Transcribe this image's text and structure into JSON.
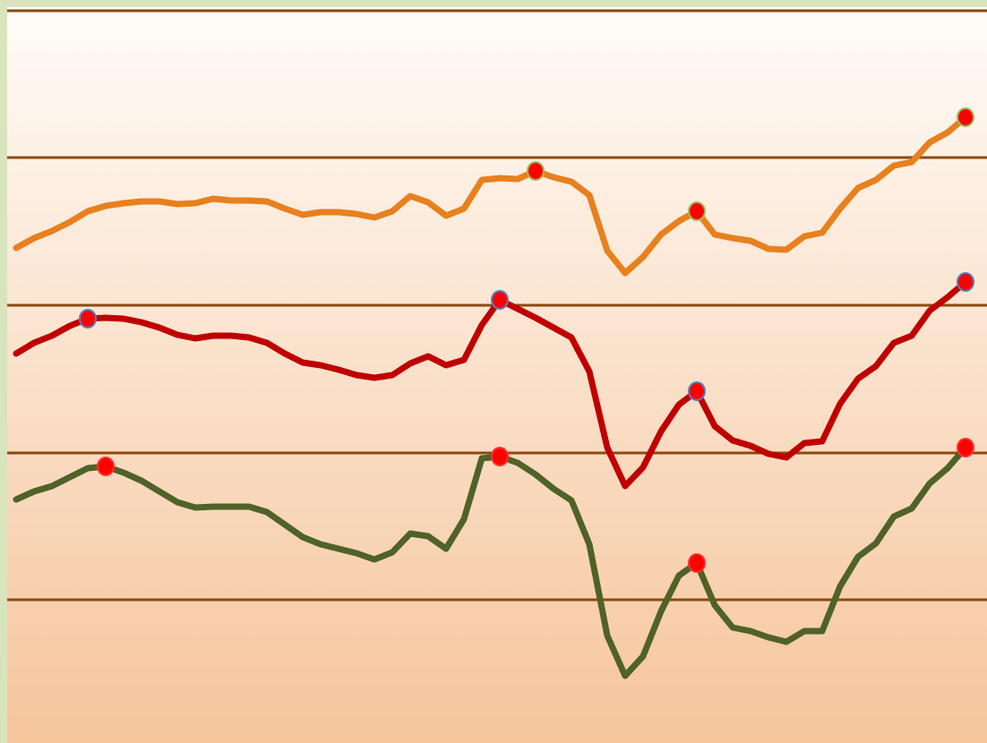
{
  "chart_data": {
    "type": "line",
    "x": [
      0,
      1,
      2,
      3,
      4,
      5,
      6,
      7,
      8,
      9,
      10,
      11,
      12,
      13,
      14,
      15,
      16,
      17,
      18,
      19,
      20,
      21,
      22,
      23,
      24,
      25,
      26,
      27,
      28,
      29,
      30,
      31,
      32,
      33,
      34,
      35,
      36,
      37,
      38,
      39,
      40,
      41,
      42,
      43,
      44,
      45,
      46,
      47,
      48,
      49,
      50,
      51,
      52,
      53
    ],
    "xlim": [
      -0.9,
      54.2
    ],
    "ylim": [
      0,
      830
    ],
    "yticks": [
      160,
      324,
      489,
      654,
      818
    ],
    "grid": true,
    "grid_color": "#8b4a12",
    "series": [
      {
        "color": "#e8801e",
        "marker_fill": "#ff0000",
        "marker_stroke": "#9bbb59",
        "markers": [
          29,
          38,
          53
        ],
        "values": [
          553,
          564,
          572,
          582,
          594,
          600,
          603,
          605,
          605,
          602,
          603,
          608,
          606,
          606,
          605,
          597,
          590,
          593,
          593,
          591,
          587,
          594,
          611,
          604,
          589,
          597,
          629,
          631,
          630,
          639,
          632,
          627,
          612,
          550,
          525,
          543,
          568,
          583,
          594,
          568,
          564,
          561,
          552,
          551,
          566,
          570,
          597,
          620,
          629,
          645,
          649,
          671,
          682,
          699
        ]
      },
      {
        "color": "#c00000",
        "marker_fill": "#ff0000",
        "marker_stroke": "#4f81bd",
        "markers": [
          4,
          27,
          38,
          53
        ],
        "values": [
          435,
          447,
          455,
          466,
          474,
          475,
          474,
          470,
          464,
          456,
          452,
          455,
          455,
          453,
          447,
          435,
          425,
          422,
          417,
          411,
          408,
          411,
          424,
          432,
          422,
          428,
          467,
          495,
          485,
          475,
          464,
          453,
          415,
          330,
          287,
          308,
          348,
          378,
          393,
          354,
          338,
          332,
          323,
          319,
          335,
          337,
          379,
          407,
          421,
          447,
          455,
          483,
          498,
          515
        ]
      },
      {
        "color": "#4f6228",
        "marker_fill": "#ff0000",
        "marker_stroke": "#ff3030",
        "markers": [
          5,
          27,
          38,
          53
        ],
        "values": [
          272,
          281,
          287,
          297,
          307,
          309,
          302,
          293,
          281,
          269,
          263,
          264,
          264,
          264,
          258,
          244,
          230,
          222,
          217,
          212,
          205,
          213,
          234,
          231,
          217,
          250,
          318,
          320,
          313,
          300,
          284,
          271,
          222,
          120,
          75,
          97,
          147,
          187,
          201,
          154,
          129,
          125,
          118,
          113,
          125,
          125,
          175,
          208,
          223,
          253,
          262,
          290,
          307,
          330
        ]
      }
    ]
  }
}
